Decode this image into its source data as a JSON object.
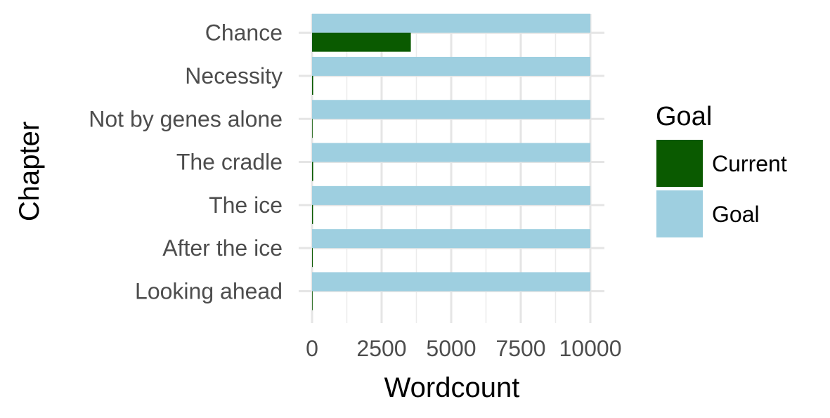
{
  "chart_data": {
    "type": "bar",
    "orientation": "horizontal",
    "categories": [
      "Chance",
      "Necessity",
      "Not by genes alone",
      "The cradle",
      "The ice",
      "After the ice",
      "Looking ahead"
    ],
    "series": [
      {
        "name": "Current",
        "color": "#0a5a00",
        "values": [
          3550,
          40,
          15,
          40,
          35,
          25,
          15
        ]
      },
      {
        "name": "Goal",
        "color": "#9ecfe0",
        "values": [
          10000,
          10000,
          10000,
          10000,
          10000,
          10000,
          10000
        ]
      }
    ],
    "xlabel": "Wordcount",
    "ylabel": "Chapter",
    "xlim": [
      0,
      10000
    ],
    "xticks": [
      0,
      2500,
      5000,
      7500,
      10000
    ],
    "grid": true,
    "legend": {
      "title": "Goal",
      "position": "right",
      "entries": [
        {
          "label": "Current",
          "color": "#0a5a00"
        },
        {
          "label": "Goal",
          "color": "#9ecfe0"
        }
      ]
    }
  }
}
